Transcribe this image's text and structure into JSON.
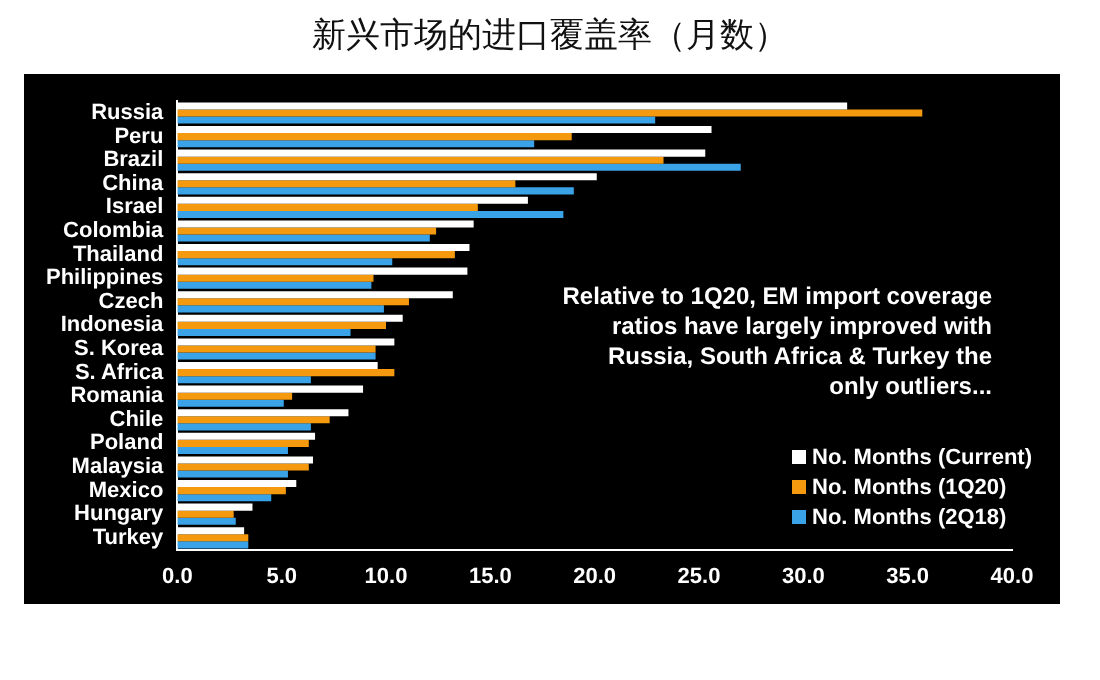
{
  "chart_data": {
    "type": "bar",
    "orientation": "horizontal",
    "title": "新兴市场的进口覆盖率（月数）",
    "categories": [
      "Russia",
      "Peru",
      "Brazil",
      "China",
      "Israel",
      "Colombia",
      "Thailand",
      "Philippines",
      "Czech",
      "Indonesia",
      "S. Korea",
      "S. Africa",
      "Romania",
      "Chile",
      "Poland",
      "Malaysia",
      "Mexico",
      "Hungary",
      "Turkey"
    ],
    "series": [
      {
        "name": "No. Months (Current)",
        "color": "#ffffff",
        "values": [
          32.1,
          25.6,
          25.3,
          20.1,
          16.8,
          14.2,
          14.0,
          13.9,
          13.2,
          10.8,
          10.4,
          9.6,
          8.9,
          8.2,
          6.6,
          6.5,
          5.7,
          3.6,
          3.2
        ]
      },
      {
        "name": "No. Months (1Q20)",
        "color": "#f59a0e",
        "values": [
          35.7,
          18.9,
          23.3,
          16.2,
          14.4,
          12.4,
          13.3,
          9.4,
          11.1,
          10.0,
          9.5,
          10.4,
          5.5,
          7.3,
          6.3,
          6.3,
          5.2,
          2.7,
          3.4
        ]
      },
      {
        "name": "No. Months (2Q18)",
        "color": "#3aa3e8",
        "values": [
          22.9,
          17.1,
          27.0,
          19.0,
          18.5,
          12.1,
          10.3,
          9.3,
          9.9,
          8.3,
          9.5,
          6.4,
          5.1,
          6.4,
          5.3,
          5.3,
          4.5,
          2.8,
          3.4
        ]
      }
    ],
    "xlim": [
      0,
      40
    ],
    "xticks": [
      {
        "value": 0,
        "label": "0.0"
      },
      {
        "value": 5,
        "label": "5.0"
      },
      {
        "value": 10,
        "label": "10.0"
      },
      {
        "value": 15,
        "label": "15.0"
      },
      {
        "value": 20,
        "label": "20.0"
      },
      {
        "value": 25,
        "label": "25.0"
      },
      {
        "value": 30,
        "label": "30.0"
      },
      {
        "value": 35,
        "label": "35.0"
      },
      {
        "value": 40,
        "label": "40.0"
      }
    ],
    "grid": false,
    "legend": "bottom right",
    "annotations": [
      "Relative to 1Q20, EM import coverage ratios have largely improved with Russia, South Africa & Turkey the only outliers..."
    ]
  }
}
